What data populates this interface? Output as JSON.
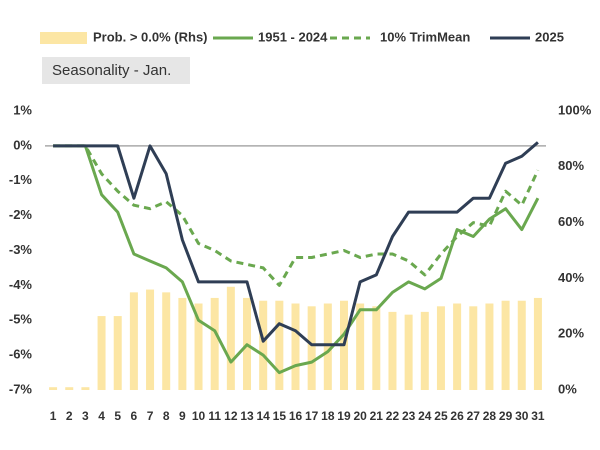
{
  "chart_data": {
    "type": "combo",
    "subtitle": "Seasonality - Jan.",
    "categories": [
      "1",
      "2",
      "3",
      "4",
      "5",
      "6",
      "7",
      "8",
      "9",
      "10",
      "11",
      "12",
      "13",
      "14",
      "15",
      "16",
      "17",
      "18",
      "19",
      "20",
      "21",
      "22",
      "23",
      "24",
      "25",
      "26",
      "27",
      "28",
      "29",
      "30",
      "31"
    ],
    "series": [
      {
        "name": "Prob. > 0.0% (Rhs)",
        "type": "bar",
        "axis": "y2",
        "color": "#fce6a4",
        "values": [
          1,
          1,
          1,
          26.5,
          26.5,
          35,
          36,
          35,
          33,
          31,
          33,
          37,
          33,
          32,
          32,
          31,
          30,
          31,
          32,
          31,
          30,
          28,
          27,
          28,
          30,
          31,
          30,
          31,
          32,
          32,
          33
        ]
      },
      {
        "name": "1951 - 2024",
        "type": "line",
        "color": "#6aa84f",
        "dash": false,
        "values": [
          0,
          0,
          0,
          -1.4,
          -1.9,
          -3.1,
          -3.3,
          -3.5,
          -3.9,
          -5.0,
          -5.3,
          -6.2,
          -5.7,
          -6.0,
          -6.5,
          -6.3,
          -6.2,
          -5.9,
          -5.4,
          -4.7,
          -4.7,
          -4.2,
          -3.9,
          -4.1,
          -3.8,
          -2.4,
          -2.6,
          -2.1,
          -1.8,
          -2.4,
          -1.5
        ]
      },
      {
        "name": "10% TrimMean",
        "type": "line",
        "color": "#6aa84f",
        "dash": true,
        "values": [
          0,
          0,
          0,
          -0.8,
          -1.3,
          -1.7,
          -1.8,
          -1.6,
          -2.0,
          -2.8,
          -3.0,
          -3.3,
          -3.4,
          -3.5,
          -4.0,
          -3.2,
          -3.2,
          -3.1,
          -3.0,
          -3.2,
          -3.1,
          -3.1,
          -3.3,
          -3.7,
          -3.1,
          -2.6,
          -2.2,
          -2.3,
          -1.3,
          -1.7,
          -0.7
        ]
      },
      {
        "name": "2025",
        "type": "line",
        "color": "#2f3e55",
        "dash": false,
        "values": [
          0,
          0,
          0,
          0,
          0,
          -1.5,
          0,
          -0.8,
          -2.7,
          -3.9,
          -3.9,
          -3.9,
          -3.9,
          -5.6,
          -5.1,
          -5.3,
          -5.7,
          -5.7,
          -5.7,
          -3.9,
          -3.7,
          -2.6,
          -1.9,
          -1.9,
          -1.9,
          -1.9,
          -1.5,
          -1.5,
          -0.5,
          -0.3,
          0.1
        ]
      }
    ],
    "ylim": [
      -7,
      1
    ],
    "yticks": [
      {
        "value": 1,
        "label": "1%"
      },
      {
        "value": 0,
        "label": "0%"
      },
      {
        "value": -1,
        "label": "-1%"
      },
      {
        "value": -2,
        "label": "-2%"
      },
      {
        "value": -3,
        "label": "-3%"
      },
      {
        "value": -4,
        "label": "-4%"
      },
      {
        "value": -5,
        "label": "-5%"
      },
      {
        "value": -6,
        "label": "-6%"
      },
      {
        "value": -7,
        "label": "-7%"
      }
    ],
    "y2lim": [
      0,
      100
    ],
    "y2ticks": [
      {
        "value": 0,
        "label": "0%"
      },
      {
        "value": 20,
        "label": "20%"
      },
      {
        "value": 40,
        "label": "40%"
      },
      {
        "value": 60,
        "label": "60%"
      },
      {
        "value": 80,
        "label": "80%"
      },
      {
        "value": 100,
        "label": "100%"
      }
    ],
    "grid": false,
    "zero_line": true
  }
}
